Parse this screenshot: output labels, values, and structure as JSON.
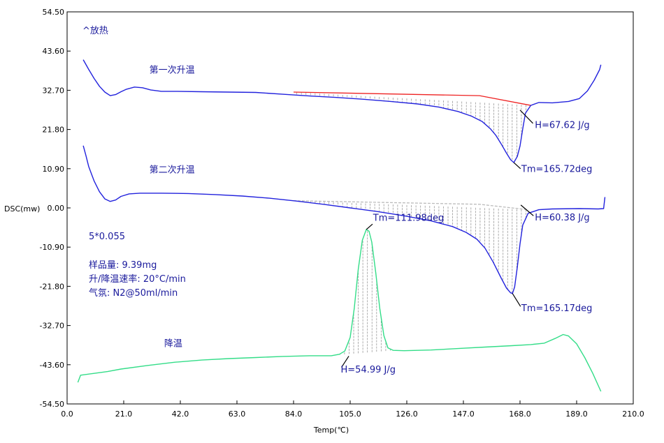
{
  "chart_data": {
    "type": "line",
    "title": "",
    "xlabel": "Temp(℃)",
    "ylabel": "DSC(mw)",
    "xlim": [
      0,
      210
    ],
    "ylim": [
      -54.5,
      54.5
    ],
    "x_ticks": [
      "0.0",
      "21.0",
      "42.0",
      "63.0",
      "84.0",
      "105.0",
      "126.0",
      "147.0",
      "168.0",
      "189.0",
      "210.0"
    ],
    "y_ticks": [
      "54.50",
      "43.60",
      "32.70",
      "21.80",
      "10.90",
      "0.00",
      "-10.90",
      "-21.80",
      "-32.70",
      "-43.60",
      "-54.50"
    ],
    "grid": false,
    "exo_label": "^放热",
    "info_lines": [
      "5*0.055",
      "样品量:  9.39mg",
      "升/降温速率:  20°C/min",
      "气氛:  N2@50ml/min"
    ],
    "colors": {
      "heating": "#2222dd",
      "cooling": "#33dd88",
      "baseline": "#ee2222",
      "hatch": "#999999",
      "frame": "#000000",
      "text": "#1a1a9c"
    },
    "series": [
      {
        "name": "第一次升温",
        "color": "#2222dd",
        "points": [
          [
            6,
            41.2
          ],
          [
            8,
            38.5
          ],
          [
            10,
            36
          ],
          [
            12,
            33.8
          ],
          [
            14,
            32.2
          ],
          [
            16,
            31.2
          ],
          [
            18,
            31.5
          ],
          [
            20,
            32.3
          ],
          [
            22,
            33
          ],
          [
            25,
            33.6
          ],
          [
            28,
            33.4
          ],
          [
            31,
            32.8
          ],
          [
            35,
            32.4
          ],
          [
            40,
            32.4
          ],
          [
            50,
            32.3
          ],
          [
            60,
            32.2
          ],
          [
            70,
            32.1
          ],
          [
            80,
            31.6
          ],
          [
            90,
            31.1
          ],
          [
            100,
            30.7
          ],
          [
            110,
            30.2
          ],
          [
            120,
            29.6
          ],
          [
            130,
            28.9
          ],
          [
            138,
            28
          ],
          [
            145,
            26.8
          ],
          [
            150,
            25.5
          ],
          [
            154,
            24
          ],
          [
            157,
            22
          ],
          [
            159,
            20.2
          ],
          [
            161,
            17.8
          ],
          [
            163,
            15.2
          ],
          [
            164.5,
            13.4
          ],
          [
            165.7,
            12.6
          ],
          [
            167,
            14.3
          ],
          [
            168,
            17.2
          ],
          [
            169,
            22
          ],
          [
            170,
            26.3
          ],
          [
            172,
            28.5
          ],
          [
            175,
            29.3
          ],
          [
            180,
            29.2
          ],
          [
            186,
            29.6
          ],
          [
            190,
            30.4
          ],
          [
            193,
            32.5
          ],
          [
            195.5,
            35.5
          ],
          [
            197.5,
            38.4
          ],
          [
            198,
            39.8
          ]
        ]
      },
      {
        "name": "第二次升温",
        "color": "#2222dd",
        "points": [
          [
            6,
            17.3
          ],
          [
            7,
            14.5
          ],
          [
            8,
            11.5
          ],
          [
            10,
            7.5
          ],
          [
            12,
            4.5
          ],
          [
            14,
            2.5
          ],
          [
            16,
            1.8
          ],
          [
            18,
            2.2
          ],
          [
            20,
            3.2
          ],
          [
            23,
            3.9
          ],
          [
            27,
            4.1
          ],
          [
            35,
            4.1
          ],
          [
            45,
            4
          ],
          [
            55,
            3.7
          ],
          [
            65,
            3.3
          ],
          [
            75,
            2.7
          ],
          [
            85,
            1.9
          ],
          [
            95,
            1
          ],
          [
            105,
            0
          ],
          [
            115,
            -1
          ],
          [
            125,
            -2.2
          ],
          [
            135,
            -3.6
          ],
          [
            143,
            -5.2
          ],
          [
            148,
            -6.8
          ],
          [
            152,
            -8.7
          ],
          [
            155,
            -11.2
          ],
          [
            158,
            -15
          ],
          [
            161,
            -19.5
          ],
          [
            163,
            -22.3
          ],
          [
            164.5,
            -23.6
          ],
          [
            165.2,
            -23.8
          ],
          [
            166,
            -22
          ],
          [
            167,
            -16.5
          ],
          [
            168,
            -10
          ],
          [
            169,
            -4.8
          ],
          [
            171,
            -1.5
          ],
          [
            175,
            -0.5
          ],
          [
            180,
            -0.3
          ],
          [
            190,
            -0.2
          ],
          [
            197,
            -0.3
          ],
          [
            199,
            -0.2
          ],
          [
            199.5,
            3
          ]
        ]
      },
      {
        "name": "降温",
        "color": "#33dd88",
        "points": [
          [
            4,
            -48.5
          ],
          [
            5,
            -46.5
          ],
          [
            10,
            -46
          ],
          [
            15,
            -45.5
          ],
          [
            20,
            -44.8
          ],
          [
            30,
            -43.8
          ],
          [
            40,
            -42.9
          ],
          [
            50,
            -42.3
          ],
          [
            60,
            -41.9
          ],
          [
            70,
            -41.6
          ],
          [
            80,
            -41.3
          ],
          [
            90,
            -41.1
          ],
          [
            98,
            -41.1
          ],
          [
            101,
            -40.7
          ],
          [
            103,
            -39.8
          ],
          [
            105,
            -36
          ],
          [
            106.5,
            -28
          ],
          [
            108,
            -17
          ],
          [
            109.5,
            -9
          ],
          [
            111,
            -6
          ],
          [
            112,
            -6.5
          ],
          [
            113,
            -9.5
          ],
          [
            114.5,
            -18
          ],
          [
            116,
            -28
          ],
          [
            117.5,
            -35.5
          ],
          [
            119,
            -38.9
          ],
          [
            121,
            -39.6
          ],
          [
            125,
            -39.7
          ],
          [
            135,
            -39.5
          ],
          [
            145,
            -39.1
          ],
          [
            155,
            -38.7
          ],
          [
            165,
            -38.3
          ],
          [
            172,
            -38
          ],
          [
            177,
            -37.6
          ],
          [
            181,
            -36.3
          ],
          [
            184,
            -35.2
          ],
          [
            186,
            -35.6
          ],
          [
            189,
            -37.8
          ],
          [
            192,
            -41.6
          ],
          [
            195,
            -46
          ],
          [
            198,
            -51
          ]
        ]
      }
    ],
    "baselines": [
      {
        "x1": 84,
        "y1": 32.2,
        "x2": 153,
        "y2": 31.2,
        "x3": 172,
        "y3": 28.5
      },
      {
        "x1": 84,
        "y1": 2,
        "x2": 153,
        "y2": 1,
        "x3": 171,
        "y3": -0.5
      }
    ],
    "peak_areas": [
      {
        "series_index": 0,
        "x_from": 84,
        "x_to": 172,
        "base_y1": 32.2,
        "base_y2": 28.5
      },
      {
        "series_index": 1,
        "x_from": 84,
        "x_to": 171,
        "base_y1": 2,
        "base_y2": -0.5
      },
      {
        "series_index": 2,
        "x_from": 100,
        "x_to": 121,
        "base_y1": -40.9,
        "base_y2": -39.6
      }
    ],
    "annotations": [
      {
        "text": "第一次升温",
        "x": 30.5,
        "y": 37.5
      },
      {
        "text": "第二次升温",
        "x": 30.5,
        "y": 9.8
      },
      {
        "text": "降温",
        "x": 36,
        "y": -38.5
      },
      {
        "text": "H=67.62 J/g",
        "x": 173.5,
        "y": 22.2,
        "leader": [
          168,
          27.2,
          172.8,
          23.5
        ]
      },
      {
        "text": "Tm=165.72deg",
        "x": 168.5,
        "y": 10.0,
        "leader": [
          165.7,
          12.6,
          168.2,
          10.9
        ]
      },
      {
        "text": "H=60.38 J/g",
        "x": 173.5,
        "y": -3.5,
        "leader": [
          168.3,
          0.8,
          173,
          -2.2
        ]
      },
      {
        "text": "Tm=165.17deg",
        "x": 168.5,
        "y": -28.7,
        "leader": [
          165.2,
          -23.8,
          168.2,
          -27.4
        ]
      },
      {
        "text": "Tm=111.98deg",
        "x": 113.5,
        "y": -3.6,
        "leader": [
          111,
          -6,
          113.3,
          -4.5
        ]
      },
      {
        "text": "H=54.99 J/g",
        "x": 101.5,
        "y": -45.8,
        "leader": [
          104.5,
          -41.2,
          101.8,
          -44.3
        ]
      }
    ]
  }
}
